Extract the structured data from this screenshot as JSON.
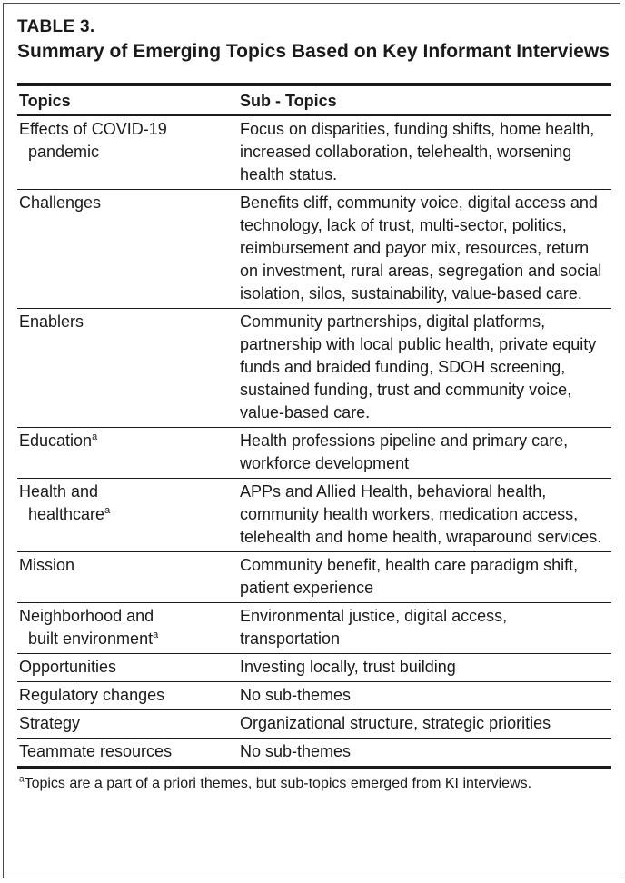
{
  "table": {
    "label": "TABLE 3.",
    "title": "Summary of Emerging Topics Based on Key Informant Interviews",
    "headers": {
      "topics": "Topics",
      "subtopics": "Sub - Topics"
    },
    "rows": [
      {
        "topic_line1": "Effects of COVID-19",
        "topic_line2": "pandemic",
        "topic_mark": "",
        "subtopics": "Focus on disparities, funding shifts, home health, increased collaboration, telehealth, worsening health status."
      },
      {
        "topic_line1": "Challenges",
        "topic_line2": "",
        "topic_mark": "",
        "subtopics": "Benefits cliff, community voice, digital access and technology, lack of trust, multi-sector, politics, reimbursement and payor mix, resources, return on investment, rural areas, segregation and social isolation, silos, sustainability, value-based care."
      },
      {
        "topic_line1": "Enablers",
        "topic_line2": "",
        "topic_mark": "",
        "subtopics": "Community partnerships, digital platforms, partnership with local public health, private equity funds and braided funding, SDOH screening, sustained funding, trust and community voice, value-based care."
      },
      {
        "topic_line1": "Education",
        "topic_line2": "",
        "topic_mark": "a",
        "subtopics": "Health professions pipeline and primary care, workforce development"
      },
      {
        "topic_line1": "Health and",
        "topic_line2": "healthcare",
        "topic_mark": "a",
        "subtopics": "APPs and Allied Health, behavioral health, community health workers, medication access, telehealth and home health, wraparound services."
      },
      {
        "topic_line1": "Mission",
        "topic_line2": "",
        "topic_mark": "",
        "subtopics": "Community benefit, health care paradigm shift, patient experience"
      },
      {
        "topic_line1": "Neighborhood and",
        "topic_line2": "built environment",
        "topic_mark": "a",
        "subtopics": "Environmental justice, digital access, transportation"
      },
      {
        "topic_line1": "Opportunities",
        "topic_line2": "",
        "topic_mark": "",
        "subtopics": "Investing locally, trust building"
      },
      {
        "topic_line1": "Regulatory changes",
        "topic_line2": "",
        "topic_mark": "",
        "subtopics": "No sub-themes"
      },
      {
        "topic_line1": "Strategy",
        "topic_line2": "",
        "topic_mark": "",
        "subtopics": "Organizational structure, strategic priorities"
      },
      {
        "topic_line1": "Teammate resources",
        "topic_line2": "",
        "topic_mark": "",
        "subtopics": "No sub-themes"
      }
    ],
    "footnote": {
      "mark": "a",
      "text": "Topics are a part of a priori themes, but sub-topics emerged from KI interviews."
    }
  }
}
